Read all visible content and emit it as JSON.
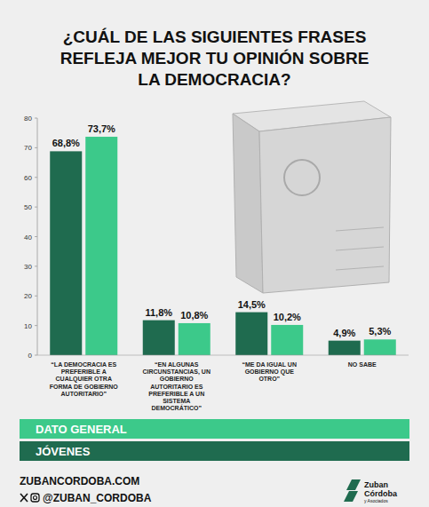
{
  "chart_data": {
    "type": "bar",
    "title": "¿CUÁL DE LAS SIGUIENTES FRASES REFLEJA MEJOR TU OPINIÓN SOBRE LA DEMOCRACIA?",
    "categories": [
      "“LA DEMOCRACIA ES PREFERIBLE A CUALQUIER OTRA FORMA DE GOBIERNO AUTORITARIO”",
      "“EN ALGUNAS CIRCUNSTANCIAS, UN GOBIERNO AUTORITARIO ES PREFERIBLE A UN SISTEMA DEMOCRÁTICO”",
      "“ME DA IGUAL UN GOBIERNO QUE OTRO”",
      "NO SABE"
    ],
    "series": [
      {
        "name": "DATO GENERAL",
        "color": "#3cc98a",
        "values": [
          73.7,
          10.8,
          10.2,
          5.3
        ],
        "value_labels": [
          "73,7%",
          "10,8%",
          "10,2%",
          "5,3%"
        ]
      },
      {
        "name": "JÓVENES",
        "color": "#1f6b4f",
        "values": [
          68.8,
          11.8,
          14.5,
          4.9
        ],
        "value_labels": [
          "68,8%",
          "11,8%",
          "14,5%",
          "4,9%"
        ]
      }
    ],
    "ylim": [
      0,
      80
    ],
    "yticks": [
      0,
      10,
      20,
      30,
      40,
      50,
      60,
      70,
      80
    ],
    "grid": false,
    "legend": "bottom",
    "data_labels": true
  },
  "footer": {
    "website": "ZUBANCORDOBA.COM",
    "handle": "@ZUBAN_CORDOBA",
    "logo": [
      "Zuban",
      "Córdoba",
      "y Asociados"
    ]
  }
}
